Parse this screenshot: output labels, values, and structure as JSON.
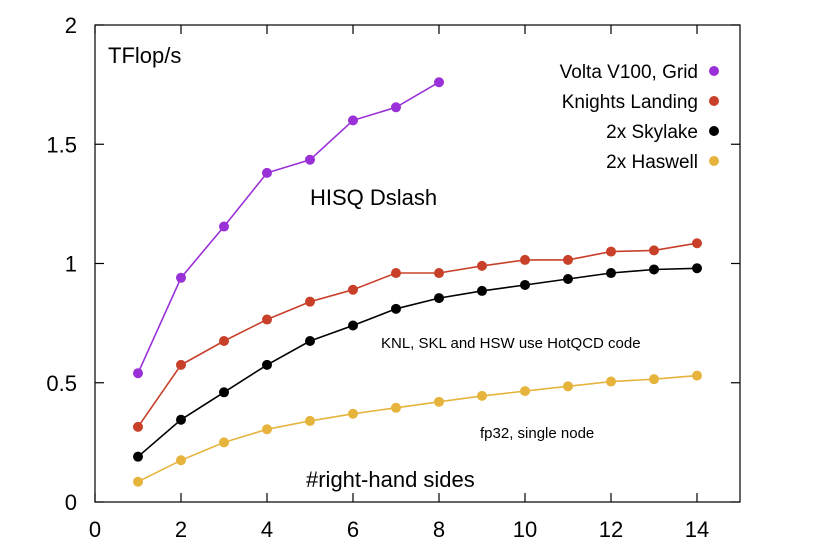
{
  "chart_data": {
    "type": "line",
    "title": "TFlop/s",
    "xlabel": "#right-hand sides",
    "ylabel": "",
    "xlim": [
      0,
      15
    ],
    "ylim": [
      0,
      2
    ],
    "x_ticks": [
      "0",
      "2",
      "4",
      "6",
      "8",
      "10",
      "12",
      "14"
    ],
    "y_ticks": [
      "0",
      "0.5",
      "1",
      "1.5",
      "2"
    ],
    "grid": false,
    "legend_position": "top-right",
    "annotations": {
      "kernel": "HISQ Dslash",
      "code_note": "KNL, SKL and HSW use HotQCD code",
      "precision_note": "fp32, single node"
    },
    "series": [
      {
        "name": "Volta V100, Grid",
        "color": "#9a30d8",
        "x": [
          1,
          2,
          3,
          4,
          5,
          6,
          7,
          8
        ],
        "y": [
          0.54,
          0.94,
          1.155,
          1.38,
          1.435,
          1.6,
          1.655,
          1.76
        ]
      },
      {
        "name": "Knights Landing",
        "color": "#c8402a",
        "x": [
          1,
          2,
          3,
          4,
          5,
          6,
          7,
          8,
          9,
          10,
          11,
          12,
          13,
          14
        ],
        "y": [
          0.315,
          0.575,
          0.675,
          0.765,
          0.84,
          0.89,
          0.96,
          0.96,
          0.99,
          1.015,
          1.015,
          1.05,
          1.055,
          1.085
        ]
      },
      {
        "name": "2x Skylake",
        "color": "#000000",
        "x": [
          1,
          2,
          3,
          4,
          5,
          6,
          7,
          8,
          9,
          10,
          11,
          12,
          13,
          14
        ],
        "y": [
          0.19,
          0.345,
          0.46,
          0.575,
          0.675,
          0.74,
          0.81,
          0.855,
          0.885,
          0.91,
          0.935,
          0.96,
          0.975,
          0.98
        ]
      },
      {
        "name": "2x Haswell",
        "color": "#e6b43c",
        "x": [
          1,
          2,
          3,
          4,
          5,
          6,
          7,
          8,
          9,
          10,
          11,
          12,
          13,
          14
        ],
        "y": [
          0.085,
          0.175,
          0.25,
          0.305,
          0.34,
          0.37,
          0.395,
          0.42,
          0.445,
          0.465,
          0.485,
          0.505,
          0.515,
          0.53
        ]
      }
    ]
  }
}
